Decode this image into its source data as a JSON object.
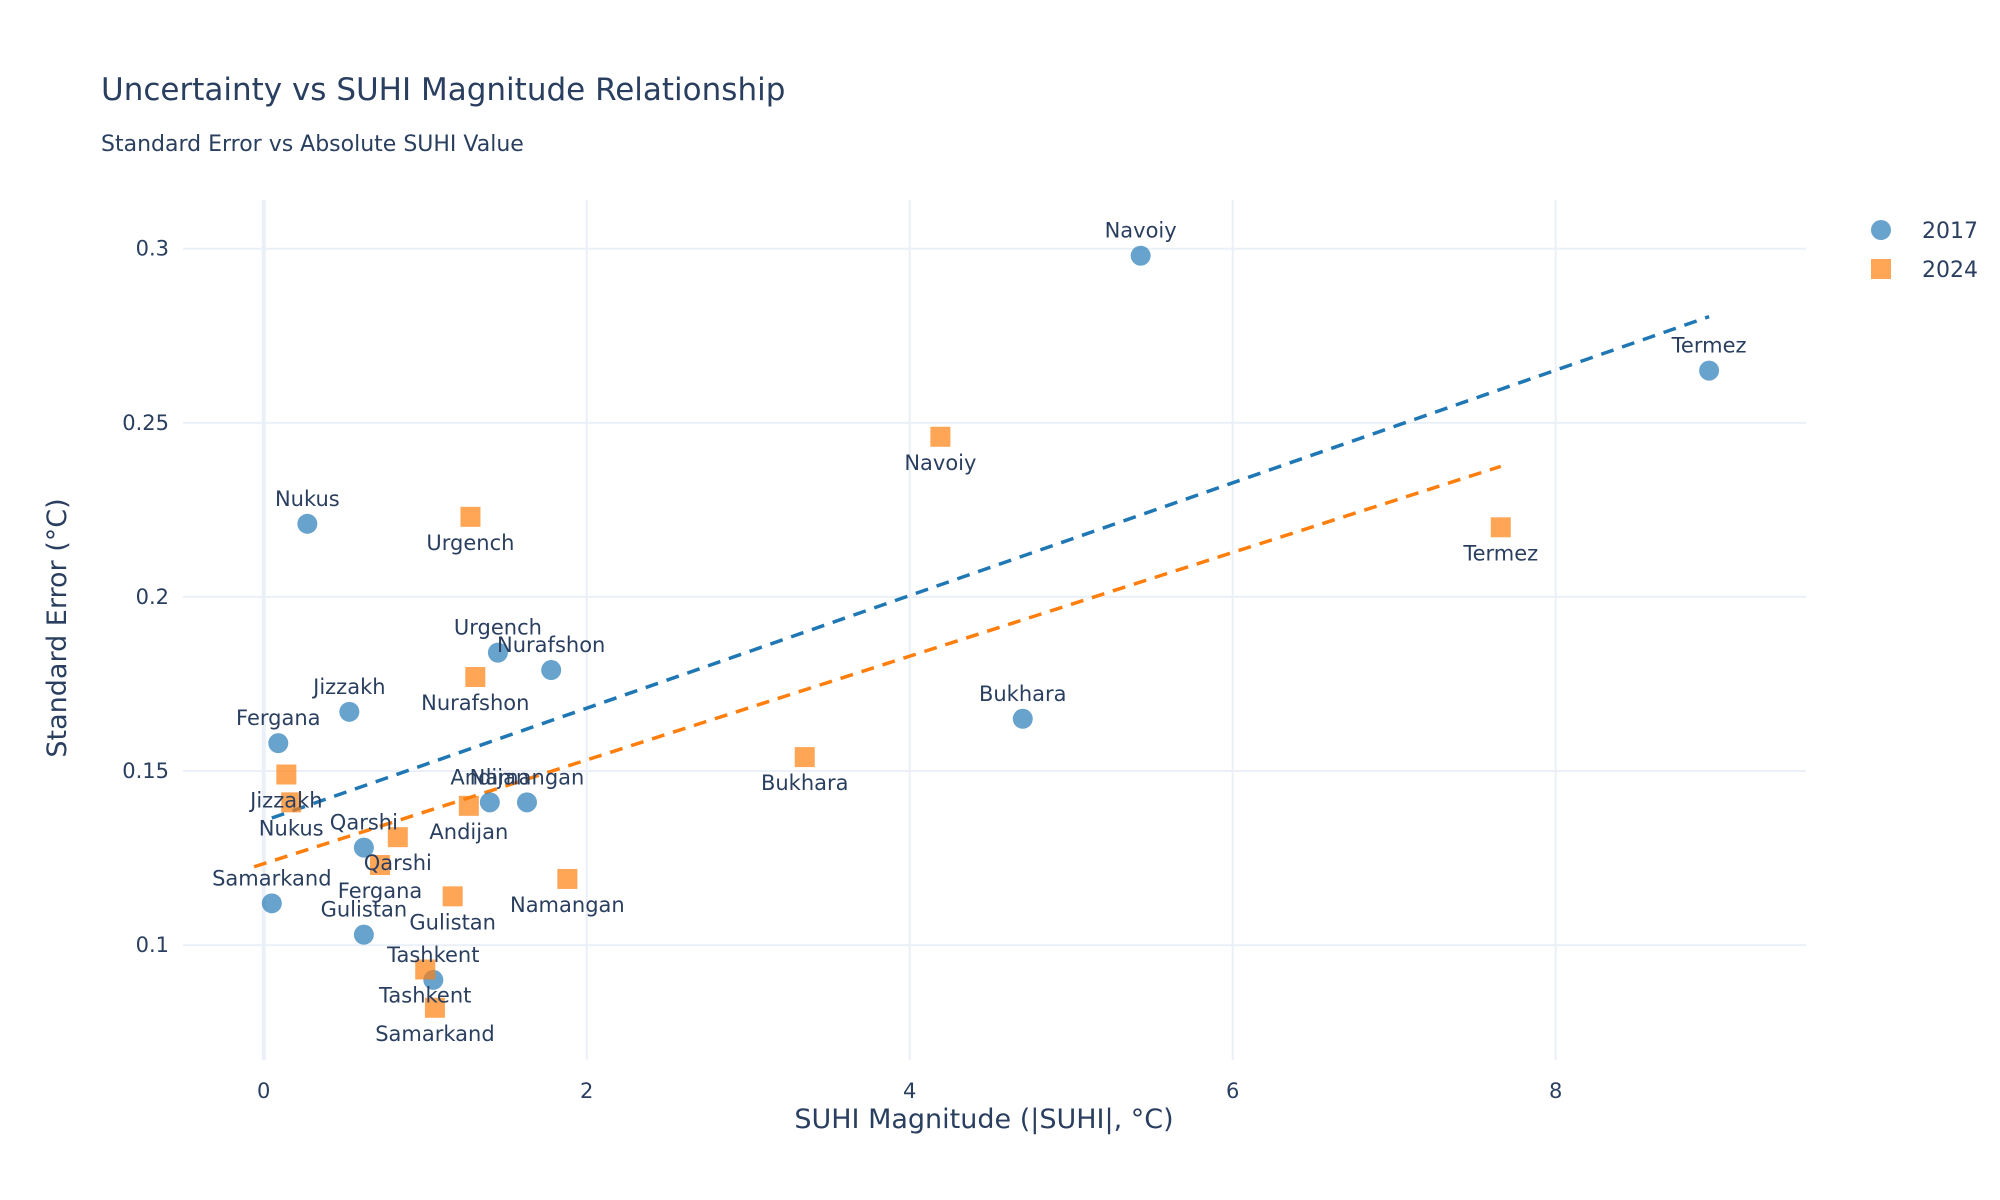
{
  "chart_data": {
    "type": "scatter",
    "title": "Uncertainty vs SUHI Magnitude Relationship",
    "subtitle": "Standard Error vs Absolute SUHI Value",
    "xlabel": "SUHI Magnitude (|SUHI|, °C)",
    "ylabel": "Standard Error (°C)",
    "xlim": [
      -0.5,
      9.55
    ],
    "ylim": [
      0.067,
      0.314
    ],
    "x_ticks": [
      0,
      2,
      4,
      6,
      8
    ],
    "y_ticks": [
      0.1,
      0.15,
      0.2,
      0.25,
      0.3
    ],
    "grid": true,
    "legend_position": "top-right",
    "series": [
      {
        "name": "2017",
        "marker": "circle",
        "color": "#1f77b4",
        "label_position": "top",
        "points": [
          {
            "label": "Navoiy",
            "x": 5.43,
            "y": 0.298
          },
          {
            "label": "Termez",
            "x": 8.95,
            "y": 0.265
          },
          {
            "label": "Nukus",
            "x": 0.27,
            "y": 0.221
          },
          {
            "label": "Urgench",
            "x": 1.45,
            "y": 0.184
          },
          {
            "label": "Nurafshon",
            "x": 1.78,
            "y": 0.179
          },
          {
            "label": "Jizzakh",
            "x": 0.53,
            "y": 0.167
          },
          {
            "label": "Bukhara",
            "x": 4.7,
            "y": 0.165
          },
          {
            "label": "Fergana",
            "x": 0.09,
            "y": 0.158
          },
          {
            "label": "Andijan",
            "x": 1.4,
            "y": 0.141
          },
          {
            "label": "Namangan",
            "x": 1.63,
            "y": 0.141
          },
          {
            "label": "Qarshi",
            "x": 0.62,
            "y": 0.128
          },
          {
            "label": "Samarkand",
            "x": 0.05,
            "y": 0.112
          },
          {
            "label": "Gulistan",
            "x": 0.62,
            "y": 0.103
          },
          {
            "label": "Tashkent",
            "x": 1.05,
            "y": 0.09
          }
        ],
        "trend": {
          "x": [
            0.05,
            8.95
          ],
          "y": [
            0.1365,
            0.2805
          ]
        }
      },
      {
        "name": "2024",
        "marker": "square",
        "color": "#ff7f0e",
        "label_position": "bottom",
        "points": [
          {
            "label": "Navoiy",
            "x": 4.19,
            "y": 0.246
          },
          {
            "label": "Urgench",
            "x": 1.28,
            "y": 0.223
          },
          {
            "label": "Termez",
            "x": 7.66,
            "y": 0.22
          },
          {
            "label": "Nurafshon",
            "x": 1.31,
            "y": 0.177
          },
          {
            "label": "Bukhara",
            "x": 3.35,
            "y": 0.154
          },
          {
            "label": "Jizzakh",
            "x": 0.14,
            "y": 0.149
          },
          {
            "label": "Nukus",
            "x": 0.17,
            "y": 0.141
          },
          {
            "label": "Andijan",
            "x": 1.27,
            "y": 0.14
          },
          {
            "label": "Qarshi",
            "x": 0.83,
            "y": 0.131
          },
          {
            "label": "Fergana",
            "x": 0.72,
            "y": 0.123
          },
          {
            "label": "Namangan",
            "x": 1.88,
            "y": 0.119
          },
          {
            "label": "Gulistan",
            "x": 1.17,
            "y": 0.114
          },
          {
            "label": "Tashkent",
            "x": 1.0,
            "y": 0.093
          },
          {
            "label": "Samarkand",
            "x": 1.06,
            "y": 0.082
          }
        ],
        "trend": {
          "x": [
            -0.06,
            7.66
          ],
          "y": [
            0.1225,
            0.2375
          ]
        }
      }
    ]
  }
}
